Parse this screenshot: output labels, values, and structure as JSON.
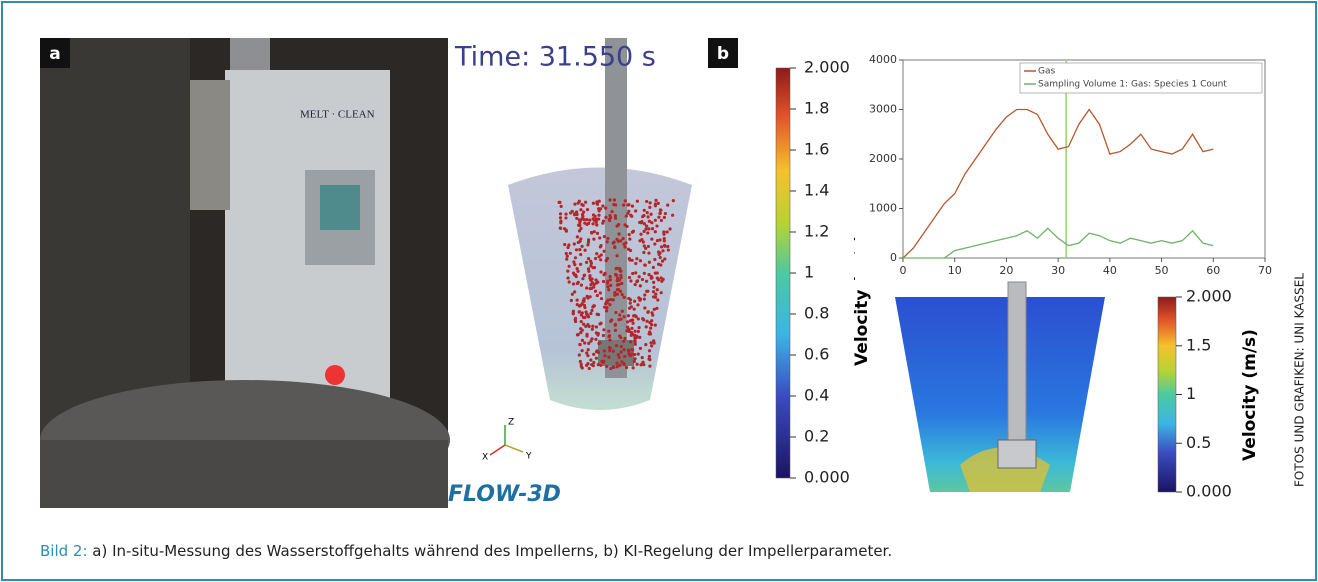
{
  "panel_a": {
    "label": "a"
  },
  "simulation": {
    "time_label": "Time: 31.550 s",
    "logo": "FLOW-3D",
    "axes": [
      "Z",
      "Y",
      "X"
    ],
    "colorbar": {
      "label": "Velocity (m/s)",
      "lim": [
        0,
        2
      ],
      "ticks": [
        {
          "value": 2,
          "label": "2.000"
        },
        1.8,
        1.6,
        1.4,
        1.2,
        1,
        0.8,
        0.6,
        0.4,
        0.2,
        {
          "value": 0,
          "label": "0.000"
        }
      ]
    }
  },
  "panel_b": {
    "label": "b"
  },
  "chart_data": {
    "type": "line",
    "x": [
      0,
      2,
      4,
      6,
      8,
      10,
      12,
      14,
      16,
      18,
      20,
      22,
      24,
      26,
      28,
      30,
      32,
      34,
      36,
      38,
      40,
      42,
      44,
      46,
      48,
      50,
      52,
      54,
      56,
      58,
      60
    ],
    "series": [
      {
        "name": "Gas",
        "color": "#b3582f",
        "values": [
          0,
          200,
          500,
          800,
          1100,
          1300,
          1700,
          2000,
          2300,
          2600,
          2850,
          3000,
          3000,
          2900,
          2500,
          2200,
          2250,
          2700,
          3000,
          2700,
          2100,
          2150,
          2300,
          2500,
          2200,
          2150,
          2100,
          2200,
          2500,
          2150,
          2200
        ]
      },
      {
        "name": "Sampling Volume 1: Gas: Species 1 Count",
        "color": "#6fb36a",
        "values": [
          0,
          0,
          0,
          0,
          0,
          150,
          200,
          250,
          300,
          350,
          400,
          450,
          550,
          400,
          600,
          400,
          250,
          300,
          500,
          450,
          350,
          300,
          400,
          350,
          300,
          350,
          300,
          350,
          550,
          300,
          250
        ]
      }
    ],
    "xlim": [
      0,
      70
    ],
    "ylim": [
      0,
      4000
    ],
    "xticks": [
      0,
      10,
      20,
      30,
      40,
      50,
      60,
      70
    ],
    "yticks": [
      0,
      1000,
      2000,
      3000,
      4000
    ],
    "cursor_x": 31.55,
    "cursor_color": "#8fd46a"
  },
  "section": {
    "colorbar": {
      "label": "Velocity (m/s)",
      "lim": [
        0,
        2
      ],
      "ticks": [
        {
          "value": 2,
          "label": "2.000"
        },
        1.5,
        1,
        0.5,
        {
          "value": 0,
          "label": "0.000"
        }
      ]
    }
  },
  "credit": "FOTOS UND GRAFIKEN: UNI KASSEL",
  "caption": {
    "prefix": "Bild 2:",
    "text": "a) In-situ-Messung des Wasserstoffgehalts während des Impellerns, b) KI-Regelung der Impellerparameter."
  }
}
